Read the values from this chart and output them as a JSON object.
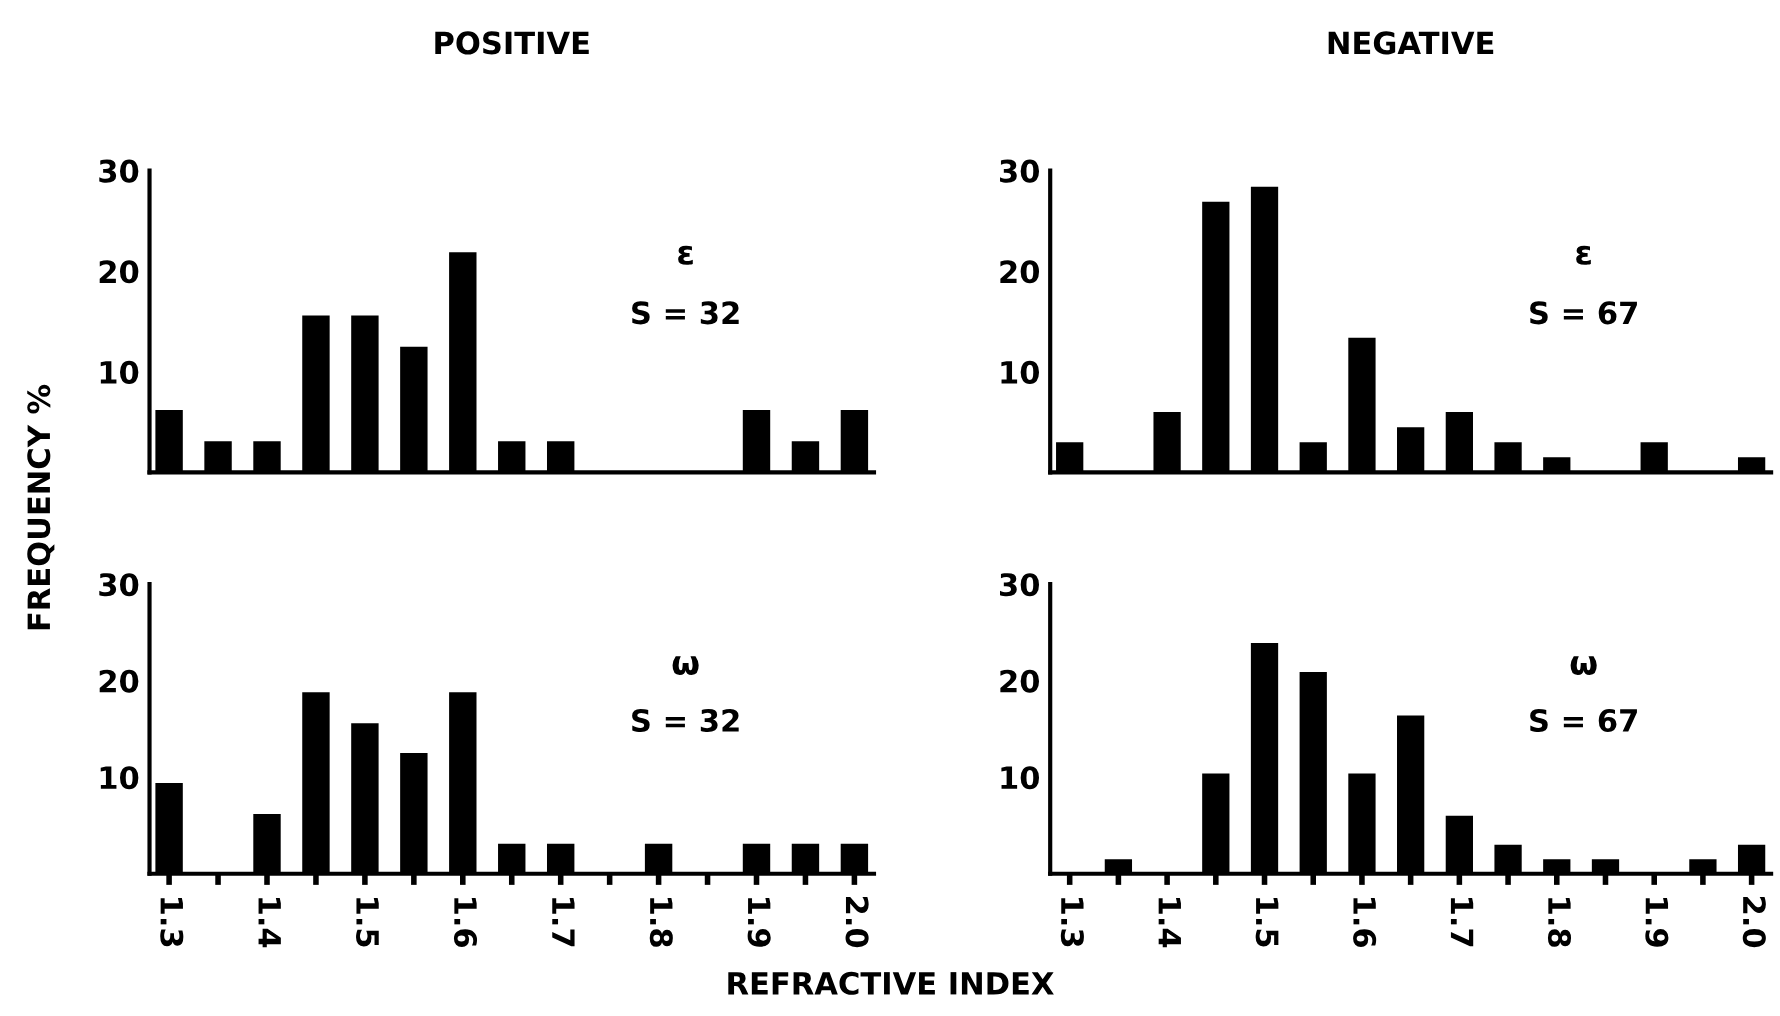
{
  "chart_data": [
    {
      "type": "bar",
      "title": "POSITIVE",
      "ylabel": "FREQUENCY %",
      "x": [
        1.3,
        1.35,
        1.4,
        1.45,
        1.5,
        1.55,
        1.6,
        1.65,
        1.7,
        1.75,
        1.8,
        1.85,
        1.9,
        1.95,
        2.0
      ],
      "values": [
        6.2,
        3.1,
        3.1,
        15.6,
        15.6,
        12.5,
        21.9,
        3.1,
        3.1,
        0,
        0,
        0,
        6.2,
        3.1,
        6.2
      ],
      "color": "#000000",
      "xlim": [
        1.28,
        2.02
      ],
      "ylim": [
        0,
        30
      ],
      "yticks": [
        10,
        20,
        30
      ],
      "tick_labels": "y",
      "annotations": [
        "ε",
        "S = 32"
      ]
    },
    {
      "type": "bar",
      "title": "NEGATIVE",
      "x": [
        1.3,
        1.35,
        1.4,
        1.45,
        1.5,
        1.55,
        1.6,
        1.65,
        1.7,
        1.75,
        1.8,
        1.85,
        1.9,
        1.95,
        2.0
      ],
      "values": [
        3.0,
        0,
        6.0,
        26.9,
        28.4,
        3.0,
        13.4,
        4.5,
        6.0,
        3.0,
        1.5,
        0,
        3.0,
        0,
        1.5
      ],
      "color": "#000000",
      "xlim": [
        1.28,
        2.02
      ],
      "ylim": [
        0,
        30
      ],
      "yticks": [
        10,
        20,
        30
      ],
      "tick_labels": "y",
      "annotations": [
        "ε",
        "S = 67"
      ]
    },
    {
      "type": "bar",
      "xlabel": "REFRACTIVE INDEX",
      "x": [
        1.3,
        1.35,
        1.4,
        1.45,
        1.5,
        1.55,
        1.6,
        1.65,
        1.7,
        1.75,
        1.8,
        1.85,
        1.9,
        1.95,
        2.0
      ],
      "values": [
        9.4,
        0,
        6.2,
        18.8,
        15.6,
        12.5,
        18.8,
        3.1,
        3.1,
        0,
        3.1,
        0,
        3.1,
        3.1,
        3.1
      ],
      "color": "#000000",
      "xlim": [
        1.28,
        2.02
      ],
      "ylim": [
        0,
        30
      ],
      "yticks": [
        10,
        20,
        30
      ],
      "xticks": [
        1.3,
        {
          "value": 1.35,
          "label": null
        },
        1.4,
        {
          "value": 1.45,
          "label": null
        },
        1.5,
        {
          "value": 1.55,
          "label": null
        },
        1.6,
        {
          "value": 1.65,
          "label": null
        },
        1.7,
        {
          "value": 1.75,
          "label": null
        },
        1.8,
        {
          "value": 1.85,
          "label": null
        },
        1.9,
        {
          "value": 1.95,
          "label": null
        },
        {
          "value": 2,
          "label": "2.0"
        }
      ],
      "annotations": [
        "ω",
        "S = 32"
      ]
    },
    {
      "type": "bar",
      "x": [
        1.3,
        1.35,
        1.4,
        1.45,
        1.5,
        1.55,
        1.6,
        1.65,
        1.7,
        1.75,
        1.8,
        1.85,
        1.9,
        1.95,
        2.0
      ],
      "values": [
        0,
        1.5,
        0,
        10.4,
        23.9,
        20.9,
        10.4,
        16.4,
        6.0,
        3.0,
        1.5,
        1.5,
        0,
        1.5,
        3.0
      ],
      "color": "#000000",
      "xlim": [
        1.28,
        2.02
      ],
      "ylim": [
        0,
        30
      ],
      "yticks": [
        10,
        20,
        30
      ],
      "xticks": [
        1.3,
        {
          "value": 1.35,
          "label": null
        },
        1.4,
        {
          "value": 1.45,
          "label": null
        },
        1.5,
        {
          "value": 1.55,
          "label": null
        },
        1.6,
        {
          "value": 1.65,
          "label": null
        },
        1.7,
        {
          "value": 1.75,
          "label": null
        },
        1.8,
        {
          "value": 1.85,
          "label": null
        },
        1.9,
        {
          "value": 1.95,
          "label": null
        },
        {
          "value": 2,
          "label": "2.0"
        }
      ],
      "annotations": [
        "ω",
        "S = 67"
      ]
    }
  ]
}
